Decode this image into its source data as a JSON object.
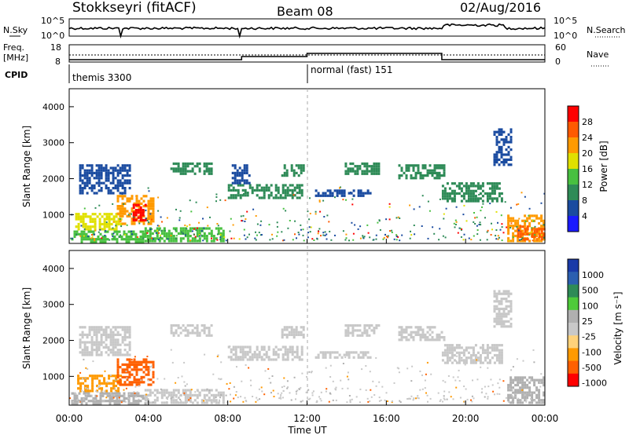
{
  "header": {
    "station": "Stokkseyri (fitACF)",
    "beam": "Beam 08",
    "date": "02/Aug/2016"
  },
  "left_labels": {
    "nsky": "N.Sky",
    "freq_top": "Freq.",
    "freq_unit": "[MHz]",
    "cpid": "CPID"
  },
  "right_labels": {
    "nsearch": "N.Search",
    "nave": "Nave"
  },
  "noise_axis": {
    "left_ticks": [
      "10^5",
      "10^0"
    ],
    "right_ticks": [
      "10^5",
      "10^0"
    ]
  },
  "freq_axis": {
    "left_ticks": [
      "18",
      "8"
    ],
    "right_ticks": [
      "60",
      "0"
    ]
  },
  "cpid_labels": {
    "first": "themis 3300",
    "second": "normal (fast) 151"
  },
  "colors": {
    "power": [
      "#1a1aff",
      "#1a4ba0",
      "#2e8b57",
      "#48c040",
      "#e0e000",
      "#ff9a00",
      "#ff5a00",
      "#ff0000"
    ],
    "velocity": [
      "#ff0000",
      "#ff6000",
      "#ff9a00",
      "#ffd27a",
      "#c8c8c8",
      "#b0b0b0",
      "#4ecb3a",
      "#2e8b57",
      "#2b5fb0",
      "#1a3aa8"
    ],
    "mask": "#ffffff"
  },
  "chart_data": [
    {
      "type": "heatmap",
      "name": "power",
      "ylabel": "Slant Range [km]",
      "y_ticks": [
        "1000",
        "2000",
        "3000",
        "4000"
      ],
      "ylim": [
        200,
        4500
      ],
      "xlim_hours": [
        0,
        24
      ],
      "colorbar": {
        "label": "Power [dB]",
        "ticks": [
          "4",
          "8",
          "12",
          "16",
          "20",
          "24",
          "28"
        ],
        "range": [
          0,
          32
        ]
      },
      "patches": [
        {
          "t0": 0.1,
          "t1": 3.9,
          "r0": 280,
          "r1": 560,
          "v": 14
        },
        {
          "t0": 0.3,
          "t1": 2.6,
          "r0": 600,
          "r1": 1050,
          "v": 18
        },
        {
          "t0": 2.4,
          "t1": 4.3,
          "r0": 750,
          "r1": 1550,
          "v": 22
        },
        {
          "t0": 3.2,
          "t1": 3.9,
          "r0": 850,
          "r1": 1300,
          "v": 29
        },
        {
          "t0": 0.5,
          "t1": 3.0,
          "r0": 1600,
          "r1": 2400,
          "v": 5
        },
        {
          "t0": 3.8,
          "t1": 7.8,
          "r0": 250,
          "r1": 650,
          "v": 13
        },
        {
          "t0": 5.1,
          "t1": 7.2,
          "r0": 2150,
          "r1": 2450,
          "v": 9
        },
        {
          "t0": 8.0,
          "t1": 11.7,
          "r0": 1450,
          "r1": 1850,
          "v": 9
        },
        {
          "t0": 8.2,
          "t1": 9.1,
          "r0": 1900,
          "r1": 2400,
          "v": 7
        },
        {
          "t0": 10.7,
          "t1": 11.8,
          "r0": 2100,
          "r1": 2400,
          "v": 8
        },
        {
          "t0": 12.4,
          "t1": 15.2,
          "r0": 1550,
          "r1": 1700,
          "v": 7
        },
        {
          "t0": 13.9,
          "t1": 15.6,
          "r0": 2150,
          "r1": 2450,
          "v": 9
        },
        {
          "t0": 16.6,
          "t1": 18.9,
          "r0": 2050,
          "r1": 2400,
          "v": 8
        },
        {
          "t0": 18.8,
          "t1": 21.8,
          "r0": 1350,
          "r1": 1900,
          "v": 9
        },
        {
          "t0": 21.4,
          "t1": 22.3,
          "r0": 2400,
          "r1": 3400,
          "v": 6
        },
        {
          "t0": 22.1,
          "t1": 24.0,
          "r0": 250,
          "r1": 1000,
          "v": 20
        },
        {
          "t0": 22.6,
          "t1": 24.0,
          "r0": 300,
          "r1": 700,
          "v": 26
        }
      ]
    },
    {
      "type": "heatmap",
      "name": "velocity",
      "ylabel": "Slant Range [km]",
      "y_ticks": [
        "1000",
        "2000",
        "3000",
        "4000"
      ],
      "ylim": [
        200,
        4500
      ],
      "xlim_hours": [
        0,
        24
      ],
      "colorbar": {
        "label": "Velocity [m s⁻¹]",
        "ticks": [
          "1000",
          "500",
          "100",
          "25",
          "-25",
          "-100",
          "-500",
          "-1000"
        ]
      },
      "patches": [
        {
          "t0": 0.1,
          "t1": 3.9,
          "r0": 280,
          "r1": 560,
          "c": 5
        },
        {
          "t0": 0.4,
          "t1": 2.6,
          "r0": 600,
          "r1": 1050,
          "c": 2
        },
        {
          "t0": 2.4,
          "t1": 4.3,
          "r0": 750,
          "r1": 1500,
          "c": 1
        },
        {
          "t0": 0.5,
          "t1": 3.0,
          "r0": 1600,
          "r1": 2400,
          "c": 4
        },
        {
          "t0": 3.8,
          "t1": 7.8,
          "r0": 250,
          "r1": 650,
          "c": 4
        },
        {
          "t0": 5.1,
          "t1": 7.2,
          "r0": 2150,
          "r1": 2450,
          "c": 4
        },
        {
          "t0": 8.0,
          "t1": 11.7,
          "r0": 1450,
          "r1": 1850,
          "c": 4
        },
        {
          "t0": 10.7,
          "t1": 11.8,
          "r0": 2100,
          "r1": 2400,
          "c": 4
        },
        {
          "t0": 12.4,
          "t1": 15.2,
          "r0": 1550,
          "r1": 1700,
          "c": 4
        },
        {
          "t0": 13.9,
          "t1": 15.6,
          "r0": 2150,
          "r1": 2450,
          "c": 4
        },
        {
          "t0": 16.6,
          "t1": 18.9,
          "r0": 2050,
          "r1": 2400,
          "c": 4
        },
        {
          "t0": 18.8,
          "t1": 21.8,
          "r0": 1350,
          "r1": 1900,
          "c": 4
        },
        {
          "t0": 21.4,
          "t1": 22.3,
          "r0": 2400,
          "r1": 3400,
          "c": 4
        },
        {
          "t0": 22.1,
          "t1": 24.0,
          "r0": 250,
          "r1": 1000,
          "c": 5
        }
      ]
    }
  ],
  "x_ticks": [
    "00:00",
    "04:00",
    "08:00",
    "12:00",
    "16:00",
    "20:00",
    "00:00"
  ],
  "xlabel": "Time UT"
}
